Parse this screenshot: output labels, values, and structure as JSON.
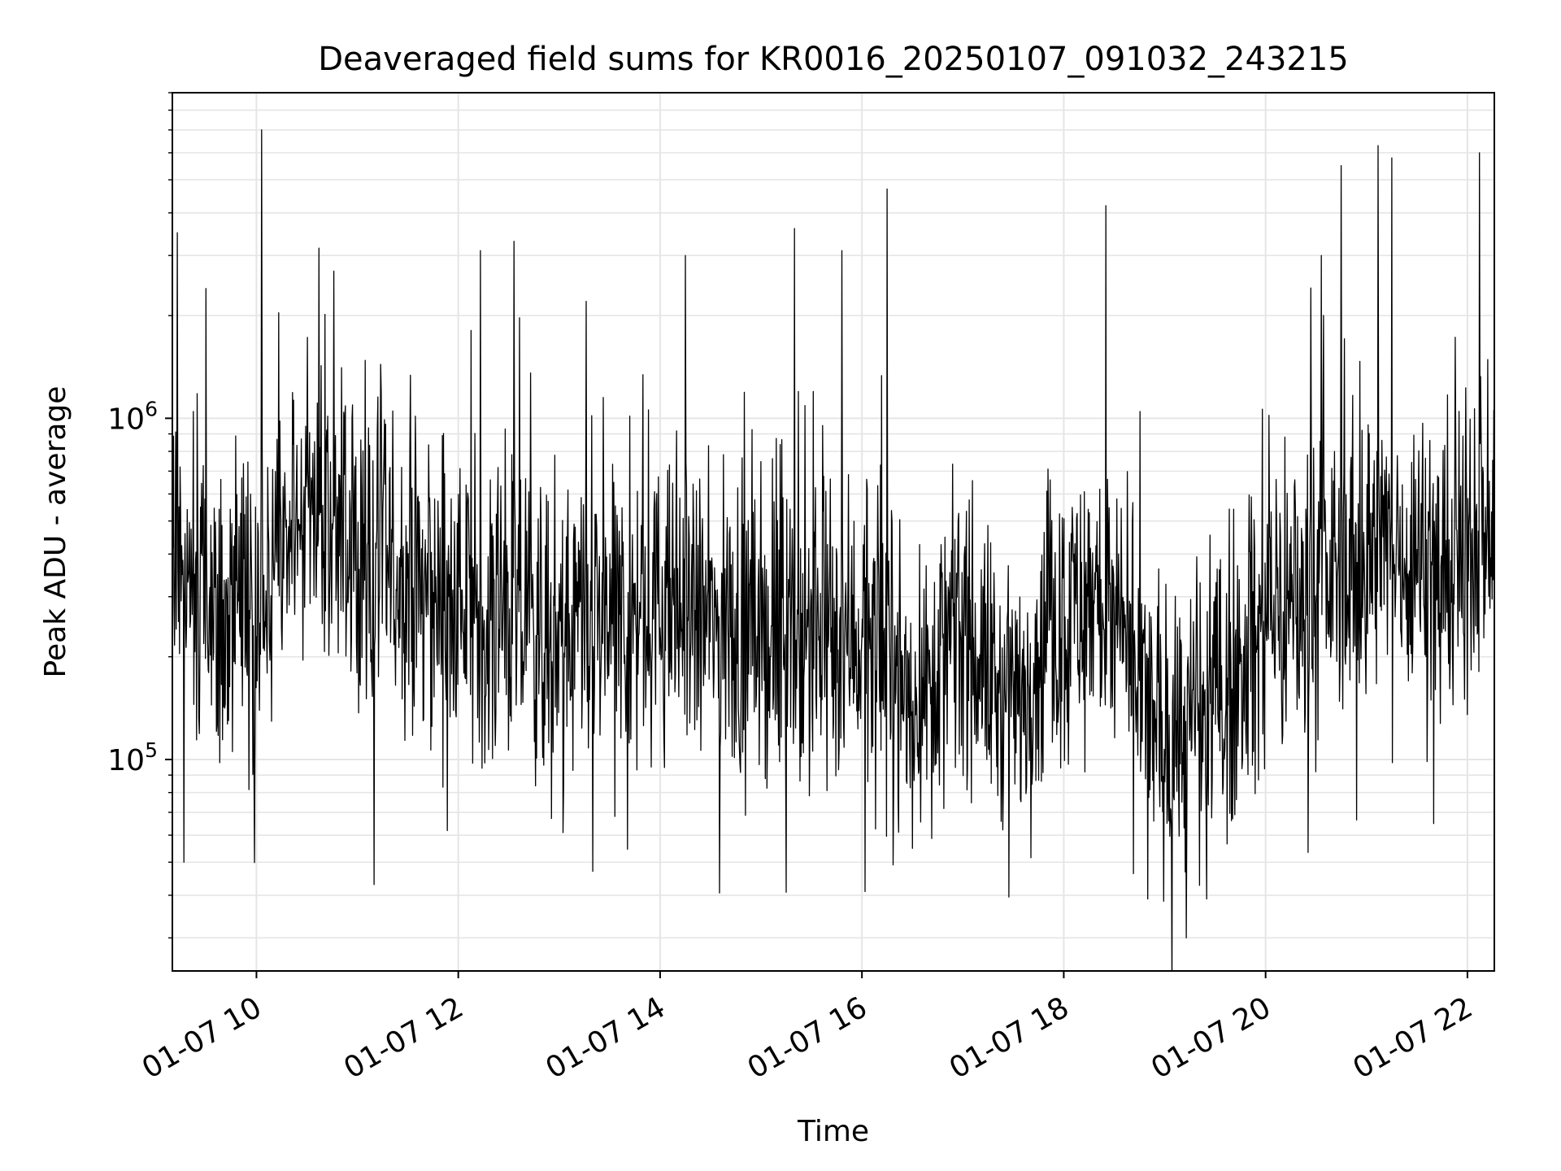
{
  "chart_data": {
    "type": "line",
    "title": "Deaveraged field sums for KR0016_20250107_091032_243215",
    "xlabel": "Time",
    "ylabel": "Peak ADU - average",
    "x_ticks": [
      "01-07 10",
      "01-07 12",
      "01-07 14",
      "01-07 16",
      "01-07 18",
      "01-07 20",
      "01-07 22"
    ],
    "x_range": [
      "2025-01-07 09:10",
      "2025-01-07 22:16"
    ],
    "y_scale": "log",
    "y_ticks": [
      {
        "base": "10",
        "exp": "5",
        "value": 100000
      },
      {
        "base": "10",
        "exp": "6",
        "value": 1000000
      }
    ],
    "ylim": [
      24000,
      9000000
    ],
    "grid": true,
    "line_color": "#000000",
    "grid_color": "#e5e5e5",
    "series": [
      {
        "x_start": "2025-01-07 09:10",
        "x_end": "2025-01-07 22:16",
        "trend_knots": [
          {
            "t": "2025-01-07 09:10",
            "y": 400000
          },
          {
            "t": "2025-01-07 09:40",
            "y": 250000
          },
          {
            "t": "2025-01-07 10:00",
            "y": 260000
          },
          {
            "t": "2025-01-07 10:30",
            "y": 550000
          },
          {
            "t": "2025-01-07 11:00",
            "y": 420000
          },
          {
            "t": "2025-01-07 11:40",
            "y": 300000
          },
          {
            "t": "2025-01-07 12:30",
            "y": 260000
          },
          {
            "t": "2025-01-07 13:00",
            "y": 220000
          },
          {
            "t": "2025-01-07 14:00",
            "y": 280000
          },
          {
            "t": "2025-01-07 14:40",
            "y": 240000
          },
          {
            "t": "2025-01-07 15:30",
            "y": 220000
          },
          {
            "t": "2025-01-07 16:00",
            "y": 240000
          },
          {
            "t": "2025-01-07 16:30",
            "y": 150000
          },
          {
            "t": "2025-01-07 17:00",
            "y": 250000
          },
          {
            "t": "2025-01-07 17:30",
            "y": 130000
          },
          {
            "t": "2025-01-07 17:50",
            "y": 250000
          },
          {
            "t": "2025-01-07 18:20",
            "y": 300000
          },
          {
            "t": "2025-01-07 19:00",
            "y": 110000
          },
          {
            "t": "2025-01-07 19:30",
            "y": 140000
          },
          {
            "t": "2025-01-07 20:00",
            "y": 250000
          },
          {
            "t": "2025-01-07 20:40",
            "y": 350000
          },
          {
            "t": "2025-01-07 21:20",
            "y": 420000
          },
          {
            "t": "2025-01-07 21:50",
            "y": 350000
          },
          {
            "t": "2025-01-07 22:16",
            "y": 500000
          }
        ],
        "spikes": [
          {
            "t": "2025-01-07 09:13",
            "y": 3500000
          },
          {
            "t": "2025-01-07 09:30",
            "y": 2400000
          },
          {
            "t": "2025-01-07 10:03",
            "y": 7000000
          },
          {
            "t": "2025-01-07 10:46",
            "y": 2700000
          },
          {
            "t": "2025-01-07 12:13",
            "y": 3100000
          },
          {
            "t": "2025-01-07 12:33",
            "y": 3300000
          },
          {
            "t": "2025-01-07 13:16",
            "y": 2200000
          },
          {
            "t": "2025-01-07 14:15",
            "y": 3000000
          },
          {
            "t": "2025-01-07 15:20",
            "y": 3600000
          },
          {
            "t": "2025-01-07 15:48",
            "y": 3100000
          },
          {
            "t": "2025-01-07 16:15",
            "y": 4700000
          },
          {
            "t": "2025-01-07 18:25",
            "y": 4200000
          },
          {
            "t": "2025-01-07 20:33",
            "y": 3000000
          },
          {
            "t": "2025-01-07 20:45",
            "y": 5500000
          },
          {
            "t": "2025-01-07 21:07",
            "y": 6300000
          },
          {
            "t": "2025-01-07 21:15",
            "y": 5800000
          },
          {
            "t": "2025-01-07 22:07",
            "y": 6000000
          }
        ],
        "dips": [
          {
            "t": "2025-01-07 09:17",
            "y": 50000
          },
          {
            "t": "2025-01-07 11:10",
            "y": 43000
          },
          {
            "t": "2025-01-07 13:20",
            "y": 47000
          },
          {
            "t": "2025-01-07 16:02",
            "y": 41000
          },
          {
            "t": "2025-01-07 18:50",
            "y": 39000
          },
          {
            "t": "2025-01-07 19:13",
            "y": 30000
          },
          {
            "t": "2025-01-07 19:25",
            "y": 39000
          }
        ]
      }
    ]
  }
}
